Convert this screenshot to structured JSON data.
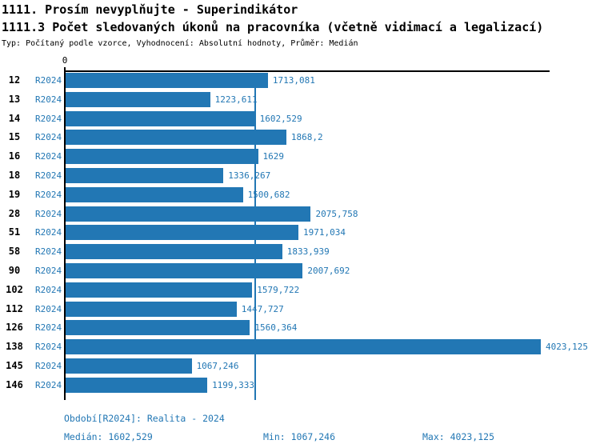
{
  "header": {
    "title": "1111. Prosím nevyplňujte - Superindikátor",
    "subtitle": "1111.3 Počet sledovaných úkonů na pracovníka (včetně vidimací a legalizací)",
    "meta": "Typ: Počítaný podle vzorce, Vyhodnocení: Absolutní hodnoty, Průměr: Medián"
  },
  "colors": {
    "accent": "#2277b4",
    "text": "#000000",
    "background": "#ffffff"
  },
  "chart_data": {
    "type": "bar",
    "orientation": "horizontal",
    "title": "1111.3 Počet sledovaných úkonů na pracovníka (včetně vidimací a legalizací)",
    "categories": [
      "12",
      "13",
      "14",
      "15",
      "16",
      "18",
      "19",
      "28",
      "51",
      "58",
      "90",
      "102",
      "112",
      "126",
      "138",
      "145",
      "146"
    ],
    "series": [
      {
        "name": "R2024",
        "values": [
          1713.081,
          1223.611,
          1602.529,
          1868.2,
          1629,
          1336.267,
          1500.682,
          2075.758,
          1971.034,
          1833.939,
          2007.692,
          1579.722,
          1447.727,
          1560.364,
          4023.125,
          1067.246,
          1199.333
        ]
      }
    ],
    "value_labels": [
      "1713,081",
      "1223,611",
      "1602,529",
      "1868,2",
      "1629",
      "1336,267",
      "1500,682",
      "2075,758",
      "1971,034",
      "1833,939",
      "2007,692",
      "1579,722",
      "1447,727",
      "1560,364",
      "4023,125",
      "1067,246",
      "1199,333"
    ],
    "xlim": [
      0,
      4100
    ],
    "x_axis_ticks": [
      "0"
    ],
    "median_value": 1602.529,
    "median_line": true,
    "bar_color": "#2277b4",
    "grid": false,
    "legend_position": "none"
  },
  "footer": {
    "period": "Období[R2024]: Realita - 2024",
    "median": "Medián: 1602,529",
    "min": "Min: 1067,246",
    "max": "Max: 4023,125"
  }
}
